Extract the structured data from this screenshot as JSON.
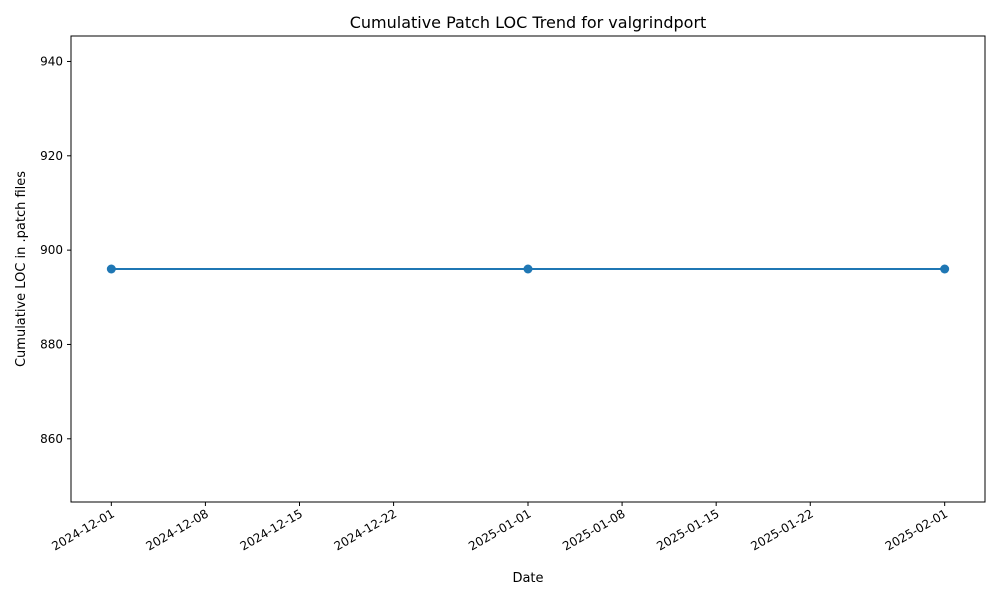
{
  "chart_data": {
    "type": "line",
    "title": "Cumulative Patch LOC Trend for valgrindport",
    "xlabel": "Date",
    "ylabel": "Cumulative LOC in .patch files",
    "x": [
      "2024-12-01",
      "2025-01-01",
      "2025-02-01"
    ],
    "series": [
      {
        "values": [
          896,
          896,
          896
        ],
        "color": "#1f77b4",
        "marker": "circle"
      }
    ],
    "xlim": [
      "2024-11-28",
      "2025-02-04"
    ],
    "ylim": [
      846.6,
      945.4
    ],
    "x_ticks": [
      "2024-12-01",
      "2024-12-08",
      "2024-12-15",
      "2024-12-22",
      "2025-01-01",
      "2025-01-08",
      "2025-01-15",
      "2025-01-22",
      "2025-02-01"
    ],
    "y_ticks": [
      860,
      880,
      900,
      920,
      940
    ],
    "grid": false,
    "legend": "none"
  }
}
